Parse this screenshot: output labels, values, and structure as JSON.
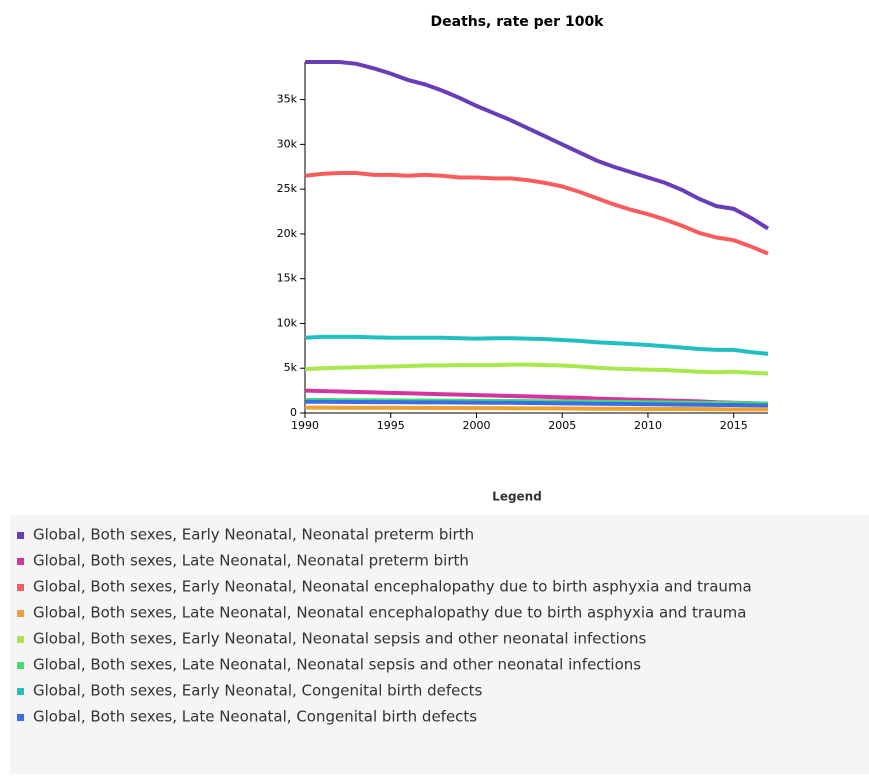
{
  "chart_data": {
    "type": "line",
    "title": "Deaths, rate per 100k",
    "legend_title": "Legend",
    "x": [
      1990,
      1991,
      1992,
      1993,
      1994,
      1995,
      1996,
      1997,
      1998,
      1999,
      2000,
      2001,
      2002,
      2003,
      2004,
      2005,
      2006,
      2007,
      2008,
      2009,
      2010,
      2011,
      2012,
      2013,
      2014,
      2015,
      2016,
      2017
    ],
    "xlim": [
      1990,
      2017
    ],
    "xticks": [
      1990,
      1995,
      2000,
      2005,
      2010,
      2015
    ],
    "ylim": [
      0,
      39200
    ],
    "yticks": [
      0,
      {
        "value": 5000,
        "label": "5k"
      },
      {
        "value": 10000,
        "label": "10k"
      },
      {
        "value": 15000,
        "label": "15k"
      },
      {
        "value": 20000,
        "label": "20k"
      },
      {
        "value": 25000,
        "label": "25k"
      },
      {
        "value": 30000,
        "label": "30k"
      },
      {
        "value": 35000,
        "label": "35k"
      }
    ],
    "series": [
      {
        "name": "Global, Both sexes, Early Neonatal, Neonatal preterm birth",
        "color": "#6a3db8",
        "values": [
          39200,
          39200,
          39200,
          39000,
          38500,
          37900,
          37200,
          36700,
          36000,
          35200,
          34300,
          33500,
          32700,
          31800,
          30900,
          30000,
          29100,
          28200,
          27500,
          26900,
          26300,
          25700,
          24900,
          23900,
          23100,
          22800,
          21800,
          20600
        ]
      },
      {
        "name": "Global, Both sexes, Late Neonatal, Neonatal preterm birth",
        "color": "#d6339f",
        "values": [
          2500,
          2450,
          2400,
          2350,
          2300,
          2250,
          2200,
          2150,
          2100,
          2050,
          2000,
          1950,
          1900,
          1850,
          1800,
          1750,
          1700,
          1600,
          1550,
          1500,
          1450,
          1400,
          1350,
          1300,
          1200,
          1150,
          1100,
          1050
        ]
      },
      {
        "name": "Global, Both sexes, Early Neonatal, Neonatal encephalopathy due to birth asphyxia and trauma",
        "color": "#fa5c5c",
        "values": [
          26500,
          26700,
          26800,
          26800,
          26600,
          26600,
          26500,
          26600,
          26500,
          26300,
          26300,
          26200,
          26200,
          26000,
          25700,
          25300,
          24700,
          24000,
          23300,
          22700,
          22200,
          21600,
          20900,
          20100,
          19600,
          19300,
          18600,
          17800
        ]
      },
      {
        "name": "Global, Both sexes, Late Neonatal, Neonatal encephalopathy due to birth asphyxia and trauma",
        "color": "#f0a030",
        "values": [
          600,
          600,
          590,
          590,
          580,
          580,
          570,
          570,
          560,
          560,
          550,
          540,
          530,
          520,
          510,
          500,
          490,
          480,
          470,
          460,
          450,
          440,
          440,
          430,
          420,
          410,
          400,
          400
        ]
      },
      {
        "name": "Global, Both sexes, Early Neonatal, Neonatal sepsis and other neonatal infections",
        "color": "#a8e84c",
        "values": [
          4900,
          5000,
          5050,
          5100,
          5150,
          5200,
          5250,
          5300,
          5300,
          5350,
          5350,
          5350,
          5400,
          5400,
          5350,
          5300,
          5200,
          5050,
          4950,
          4900,
          4850,
          4800,
          4700,
          4600,
          4550,
          4600,
          4500,
          4400
        ]
      },
      {
        "name": "Global, Both sexes, Late Neonatal, Neonatal sepsis and other neonatal infections",
        "color": "#40e070",
        "values": [
          1450,
          1450,
          1440,
          1430,
          1420,
          1410,
          1400,
          1390,
          1380,
          1370,
          1360,
          1350,
          1340,
          1330,
          1310,
          1290,
          1270,
          1250,
          1230,
          1210,
          1190,
          1170,
          1150,
          1130,
          1110,
          1100,
          1080,
          1050
        ]
      },
      {
        "name": "Global, Both sexes, Early Neonatal, Congenital birth defects",
        "color": "#20c0c0",
        "values": [
          8400,
          8500,
          8500,
          8500,
          8450,
          8400,
          8400,
          8400,
          8400,
          8350,
          8300,
          8350,
          8350,
          8300,
          8250,
          8150,
          8050,
          7900,
          7800,
          7700,
          7600,
          7450,
          7300,
          7150,
          7050,
          7050,
          6800,
          6600
        ]
      },
      {
        "name": "Global, Both sexes, Late Neonatal, Congenital birth defects",
        "color": "#3a6ee8",
        "values": [
          1250,
          1250,
          1240,
          1230,
          1220,
          1210,
          1200,
          1190,
          1180,
          1170,
          1160,
          1150,
          1140,
          1120,
          1100,
          1080,
          1060,
          1040,
          1020,
          1000,
          980,
          960,
          940,
          920,
          900,
          890,
          870,
          850
        ]
      }
    ]
  }
}
